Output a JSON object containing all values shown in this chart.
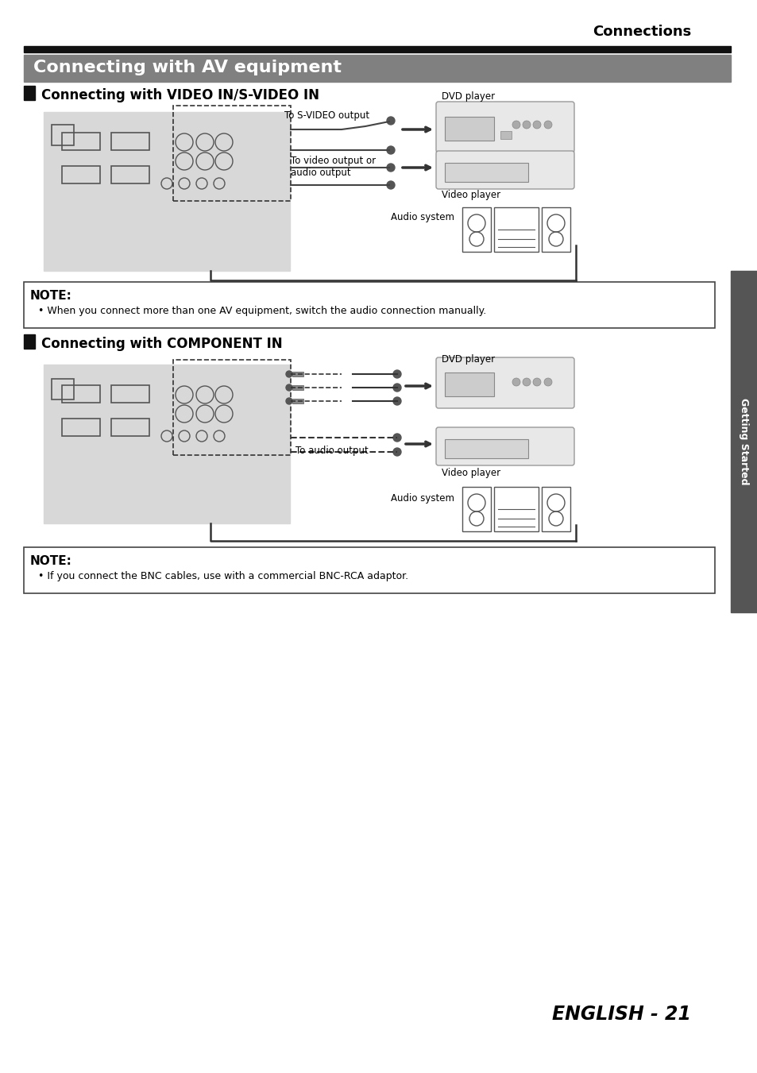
{
  "page_title": "Connections",
  "main_title": "Connecting with AV equipment",
  "section1_title": "Connecting with VIDEO IN/S-VIDEO IN",
  "section2_title": "Connecting with COMPONENT IN",
  "note1_title": "NOTE:",
  "note1_text": "When you connect more than one AV equipment, switch the audio connection manually.",
  "note2_title": "NOTE:",
  "note2_text": "If you connect the BNC cables, use with a commercial BNC-RCA adaptor.",
  "label_svideo": "To S-VIDEO output",
  "label_videoaudio": "To video output or\naudio output",
  "label_audio_system1": "Audio system",
  "label_dvd1": "DVD player",
  "label_video1": "Video player",
  "label_audio_output": "To audio output",
  "label_audio_system2": "Audio system",
  "label_dvd2": "DVD player",
  "label_video2": "Video player",
  "side_label": "Getting Started",
  "footer": "ENGLISH - 21",
  "bg_color": "#ffffff",
  "header_bar_color": "#808080",
  "section_bar_color": "#1a1a1a",
  "tab_bg": "#555555"
}
